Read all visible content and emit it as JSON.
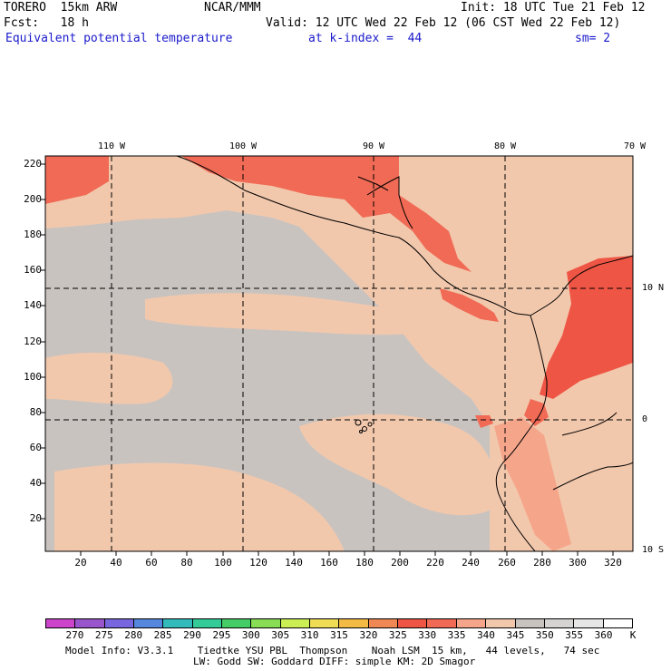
{
  "header": {
    "model": "TORERO  15km ARW",
    "org": "NCAR/MMM",
    "init": "Init: 18 UTC Tue 21 Feb 12",
    "fcst": "Fcst:   18 h",
    "valid": "Valid: 12 UTC Wed 22 Feb 12 (06 CST Wed 22 Feb 12)",
    "field": "Equivalent potential temperature",
    "level": "at k-index =  44",
    "smooth": "sm= 2"
  },
  "axes": {
    "y_ticks": [
      "220",
      "200",
      "180",
      "160",
      "140",
      "120",
      "100",
      "80",
      "60",
      "40",
      "20"
    ],
    "x_ticks": [
      "20",
      "40",
      "60",
      "80",
      "100",
      "120",
      "140",
      "160",
      "180",
      "200",
      "220",
      "240",
      "260",
      "280",
      "300",
      "320"
    ],
    "lon_labels": [
      "110 W",
      "100 W",
      "90 W",
      "80 W",
      "70 W"
    ],
    "lat_labels": [
      "10 N",
      "0",
      "10 S"
    ]
  },
  "colorbar": {
    "labels": [
      "270",
      "275",
      "280",
      "285",
      "290",
      "295",
      "300",
      "305",
      "310",
      "315",
      "320",
      "325",
      "330",
      "335",
      "340",
      "345",
      "350",
      "355",
      "360",
      "K"
    ],
    "colors": [
      "#cc44cc",
      "#9955cc",
      "#7766dd",
      "#5588dd",
      "#33bbbb",
      "#33cc99",
      "#44cc66",
      "#88dd55",
      "#ccee55",
      "#eedd55",
      "#f4bb44",
      "#f08855",
      "#ee5544",
      "#f06a55",
      "#f5a58a",
      "#f2c8ad",
      "#c9c3bf",
      "#d6d3d3",
      "#e6e6e6",
      "#ffffff"
    ]
  },
  "footer": {
    "line1": "Model Info: V3.3.1    Tiedtke YSU PBL  Thompson    Noah LSM  15 km,   44 levels,   74 sec",
    "line2": "LW: Godd SW: Goddard DIFF: simple KM: 2D Smagor"
  }
}
